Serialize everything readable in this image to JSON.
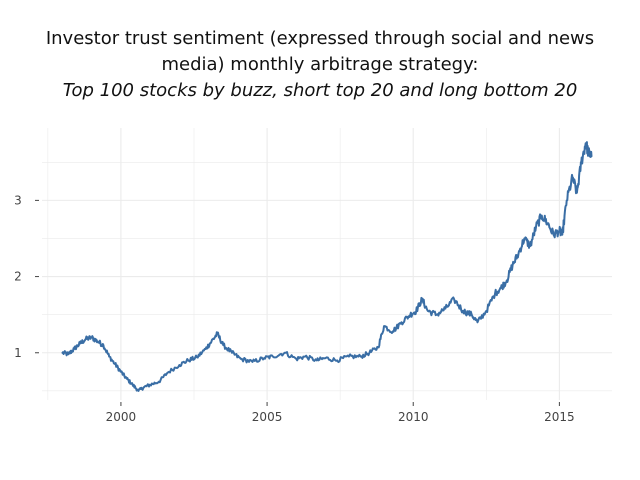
{
  "chart_data": {
    "type": "line",
    "title_lines": [
      "Investor trust sentiment (expressed through social and news",
      "media) monthly arbitrage strategy:"
    ],
    "subtitle": "Top 100 stocks by buzz, short top 20 and long bottom 20",
    "xlabel": "",
    "ylabel": "",
    "xlim": [
      1997.3,
      2016.8
    ],
    "ylim": [
      0.38,
      3.95
    ],
    "x_ticks": [
      2000,
      2005,
      2010,
      2015
    ],
    "x_tick_labels": [
      "2000",
      "2005",
      "2010",
      "2015"
    ],
    "y_ticks": [
      1,
      2,
      3
    ],
    "y_tick_labels": [
      "1",
      "2",
      "3"
    ],
    "grid": true,
    "legend": "none",
    "line_color": "#3a6ea5",
    "background": "#ffffff",
    "grid_color": "#ebebeb",
    "series": [
      {
        "x": [
          1998.0,
          1998.2,
          1998.4,
          1998.6,
          1998.8,
          1999.0,
          1999.2,
          1999.4,
          1999.6,
          1999.8,
          2000.0,
          2000.2,
          2000.4,
          2000.6,
          2000.8,
          2001.0,
          2001.3,
          2001.6,
          2002.0,
          2002.3,
          2002.6,
          2002.9,
          2003.1,
          2003.3,
          2003.5,
          2003.8,
          2004.1,
          2004.5,
          2004.9,
          2005.2,
          2005.6,
          2006.0,
          2006.3,
          2006.7,
          2007.0,
          2007.4,
          2007.8,
          2008.2,
          2008.5,
          2008.8,
          2009.0,
          2009.3,
          2009.6,
          2009.9,
          2010.1,
          2010.3,
          2010.5,
          2010.8,
          2011.1,
          2011.4,
          2011.7,
          2012.0,
          2012.2,
          2012.5,
          2012.8,
          2013.0,
          2013.2,
          2013.4,
          2013.6,
          2013.8,
          2014.0,
          2014.2,
          2014.4,
          2014.6,
          2014.8,
          2015.0,
          2015.1,
          2015.25,
          2015.45,
          2015.6,
          2015.75,
          2015.9,
          2016.0,
          2016.1
        ],
        "y": [
          1.0,
          0.98,
          1.05,
          1.12,
          1.18,
          1.2,
          1.15,
          1.1,
          0.95,
          0.85,
          0.75,
          0.66,
          0.58,
          0.5,
          0.55,
          0.58,
          0.62,
          0.74,
          0.84,
          0.9,
          0.94,
          1.05,
          1.15,
          1.25,
          1.1,
          1.0,
          0.92,
          0.88,
          0.93,
          0.95,
          1.0,
          0.92,
          0.95,
          0.9,
          0.93,
          0.9,
          0.95,
          0.95,
          1.0,
          1.07,
          1.35,
          1.28,
          1.4,
          1.5,
          1.55,
          1.7,
          1.55,
          1.5,
          1.58,
          1.7,
          1.55,
          1.5,
          1.4,
          1.55,
          1.78,
          1.85,
          1.95,
          2.15,
          2.3,
          2.5,
          2.4,
          2.65,
          2.8,
          2.7,
          2.55,
          2.6,
          2.55,
          3.0,
          3.3,
          3.1,
          3.5,
          3.75,
          3.62,
          3.58
        ]
      }
    ]
  }
}
